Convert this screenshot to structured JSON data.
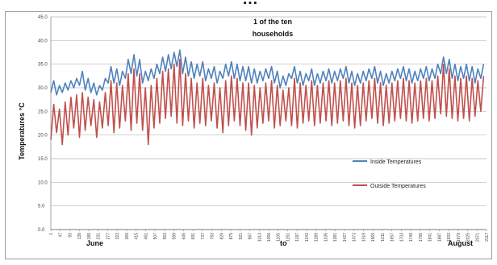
{
  "top_fragment": "…",
  "chart_data": {
    "type": "line",
    "title_lines": [
      "1 of the ten",
      "households"
    ],
    "ylabel": "Temperatures °C",
    "xlabel_months": [
      "June",
      "to",
      "August"
    ],
    "ylim": [
      0,
      45
    ],
    "yticks": [
      "0.0",
      "5.0",
      "10.0",
      "15.0",
      "20.0",
      "25.0",
      "30.0",
      "35.0",
      "40.0",
      "45.0"
    ],
    "grid": true,
    "legend_position": "right",
    "x_tick_labels": [
      "1",
      "47",
      "93",
      "139",
      "185",
      "231",
      "277",
      "323",
      "369",
      "415",
      "461",
      "507",
      "553",
      "599",
      "645",
      "691",
      "737",
      "783",
      "829",
      "875",
      "921",
      "967",
      "1013",
      "1059",
      "1105",
      "1151",
      "1197",
      "1243",
      "1289",
      "1335",
      "1381",
      "1427",
      "1473",
      "1519",
      "1565",
      "1611",
      "1657",
      "1703",
      "1749",
      "1795",
      "1841",
      "1887",
      "1933",
      "1979",
      "2025",
      "2071",
      "2117"
    ],
    "series": [
      {
        "name": "Inside Temperatures",
        "color": "#4f81bd",
        "daily_max": [
          31.5,
          30.5,
          31.0,
          31.5,
          32.0,
          33.5,
          32.0,
          31.0,
          30.5,
          32.0,
          34.5,
          34.0,
          33.5,
          36.0,
          37.0,
          36.0,
          33.5,
          34.0,
          35.0,
          36.5,
          37.0,
          37.5,
          38.0,
          36.5,
          35.5,
          35.0,
          35.5,
          34.0,
          34.5,
          33.5,
          35.0,
          35.5,
          35.0,
          34.5,
          34.5,
          34.0,
          33.5,
          34.0,
          34.5,
          33.5,
          32.5,
          33.0,
          34.5,
          33.5,
          33.0,
          34.0,
          33.0,
          33.5,
          34.0,
          33.5,
          34.0,
          34.5,
          33.5,
          33.0,
          33.5,
          34.0,
          34.5,
          33.5,
          33.0,
          33.5,
          34.0,
          34.5,
          34.0,
          33.5,
          34.0,
          34.5,
          34.0,
          35.0,
          36.5,
          36.0,
          35.0,
          34.5,
          35.0,
          34.5,
          34.0,
          35.0
        ],
        "daily_min": [
          29.0,
          28.5,
          29.0,
          29.5,
          30.0,
          30.5,
          29.5,
          29.0,
          28.5,
          29.5,
          31.0,
          31.0,
          30.5,
          32.0,
          33.0,
          32.5,
          31.0,
          31.5,
          32.0,
          33.0,
          33.5,
          34.0,
          34.5,
          33.0,
          32.5,
          32.0,
          32.5,
          31.5,
          32.0,
          31.0,
          32.0,
          32.5,
          32.0,
          31.5,
          31.5,
          31.0,
          31.0,
          31.5,
          32.0,
          31.0,
          30.0,
          30.5,
          32.0,
          31.0,
          30.5,
          31.5,
          30.5,
          31.0,
          31.5,
          31.0,
          31.5,
          32.0,
          31.0,
          30.5,
          31.0,
          31.5,
          32.0,
          31.0,
          30.5,
          31.0,
          31.5,
          32.0,
          31.5,
          31.0,
          31.5,
          32.0,
          31.5,
          32.0,
          33.0,
          33.0,
          32.0,
          31.5,
          32.0,
          31.5,
          31.0,
          32.0
        ]
      },
      {
        "name": "Outside Temperatures",
        "color": "#c0504d",
        "daily_max": [
          26.5,
          25.5,
          27.0,
          28.0,
          28.5,
          29.0,
          28.0,
          27.5,
          27.0,
          29.0,
          31.5,
          31.0,
          30.5,
          33.0,
          34.0,
          33.0,
          30.0,
          30.5,
          32.0,
          33.5,
          34.0,
          35.0,
          36.0,
          33.0,
          32.0,
          31.0,
          32.0,
          30.5,
          31.0,
          30.0,
          31.5,
          32.5,
          32.0,
          31.0,
          31.0,
          30.5,
          30.0,
          31.0,
          31.5,
          30.5,
          29.5,
          30.0,
          32.0,
          31.0,
          30.5,
          31.5,
          30.5,
          31.0,
          31.5,
          31.0,
          31.5,
          32.0,
          31.0,
          30.5,
          31.0,
          31.5,
          32.0,
          31.0,
          30.5,
          31.0,
          31.5,
          32.0,
          31.5,
          31.0,
          31.5,
          32.0,
          31.5,
          32.5,
          35.0,
          34.0,
          32.5,
          32.0,
          32.5,
          32.0,
          31.5,
          32.5
        ],
        "daily_min": [
          19.0,
          20.5,
          18.0,
          20.0,
          21.5,
          19.5,
          21.0,
          22.0,
          19.5,
          21.5,
          22.0,
          20.5,
          21.5,
          23.0,
          21.0,
          22.5,
          21.0,
          18.0,
          21.5,
          22.5,
          23.5,
          24.0,
          22.5,
          22.0,
          23.0,
          21.5,
          22.5,
          22.0,
          23.0,
          21.5,
          20.5,
          22.0,
          23.0,
          22.0,
          21.0,
          20.0,
          21.5,
          22.5,
          23.0,
          21.5,
          22.0,
          23.0,
          22.0,
          21.5,
          22.5,
          23.0,
          22.0,
          22.5,
          23.0,
          22.0,
          22.5,
          23.0,
          22.0,
          21.5,
          22.0,
          23.0,
          23.5,
          22.5,
          22.0,
          22.5,
          23.0,
          23.5,
          23.0,
          22.5,
          23.0,
          23.5,
          23.0,
          23.5,
          24.5,
          24.0,
          23.5,
          23.0,
          23.5,
          23.0,
          24.0,
          25.0
        ]
      }
    ]
  }
}
